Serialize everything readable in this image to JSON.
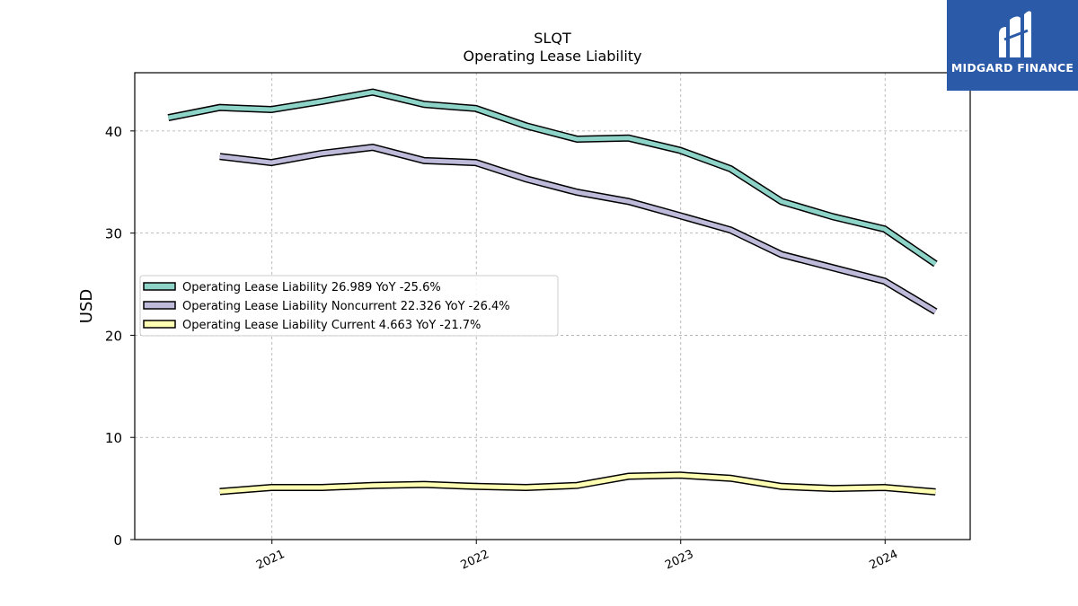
{
  "brand": {
    "name": "MIDGARD FINANCE",
    "bg_color": "#2a5aa8"
  },
  "chart_data": {
    "type": "line",
    "title": "SLQT",
    "subtitle": "Operating Lease Liability",
    "xlabel": "",
    "ylabel": "USD",
    "ylim": [
      0,
      45.7
    ],
    "xlim": [
      "2020-05-01",
      "2024-06-01"
    ],
    "yticks": [
      0,
      10,
      20,
      30,
      40
    ],
    "xticks": [
      "2021",
      "2022",
      "2023",
      "2024"
    ],
    "xtick_dates": [
      "2021-01-01",
      "2022-01-01",
      "2023-01-01",
      "2024-01-01"
    ],
    "grid": true,
    "legend_position": "center-left",
    "series": [
      {
        "name": "Operating Lease Liability  26.989 YoY -25.6%",
        "color": "#8dd3c7",
        "x": [
          "2020-06-30",
          "2020-09-30",
          "2020-12-31",
          "2021-03-31",
          "2021-06-30",
          "2021-09-30",
          "2021-12-31",
          "2022-03-31",
          "2022-06-30",
          "2022-09-30",
          "2022-12-31",
          "2023-03-31",
          "2023-06-30",
          "2023-09-30",
          "2023-12-31",
          "2024-03-31"
        ],
        "values": [
          41.3,
          42.3,
          42.1,
          42.9,
          43.8,
          42.6,
          42.2,
          40.5,
          39.2,
          39.3,
          38.1,
          36.3,
          33.1,
          31.6,
          30.4,
          26.989
        ]
      },
      {
        "name": "Operating Lease Liability Noncurrent  22.326 YoY -26.4%",
        "color": "#bebada",
        "x": [
          "2020-09-30",
          "2020-12-31",
          "2021-03-31",
          "2021-06-30",
          "2021-09-30",
          "2021-12-31",
          "2022-03-31",
          "2022-06-30",
          "2022-09-30",
          "2022-12-31",
          "2023-03-31",
          "2023-06-30",
          "2023-09-30",
          "2023-12-31",
          "2024-03-31"
        ],
        "values": [
          37.5,
          36.9,
          37.8,
          38.4,
          37.1,
          36.9,
          35.3,
          34.0,
          33.1,
          31.7,
          30.3,
          27.9,
          26.6,
          25.3,
          22.326
        ]
      },
      {
        "name": "Operating Lease Liability Current  4.663 YoY -21.7%",
        "color": "#ffffb3",
        "x": [
          "2020-09-30",
          "2020-12-31",
          "2021-03-31",
          "2021-06-30",
          "2021-09-30",
          "2021-12-31",
          "2022-03-31",
          "2022-06-30",
          "2022-09-30",
          "2022-12-31",
          "2023-03-31",
          "2023-06-30",
          "2023-09-30",
          "2023-12-31",
          "2024-03-31"
        ],
        "values": [
          4.7,
          5.1,
          5.1,
          5.3,
          5.4,
          5.2,
          5.1,
          5.3,
          6.2,
          6.3,
          6.0,
          5.2,
          5.0,
          5.1,
          4.663
        ]
      }
    ]
  }
}
